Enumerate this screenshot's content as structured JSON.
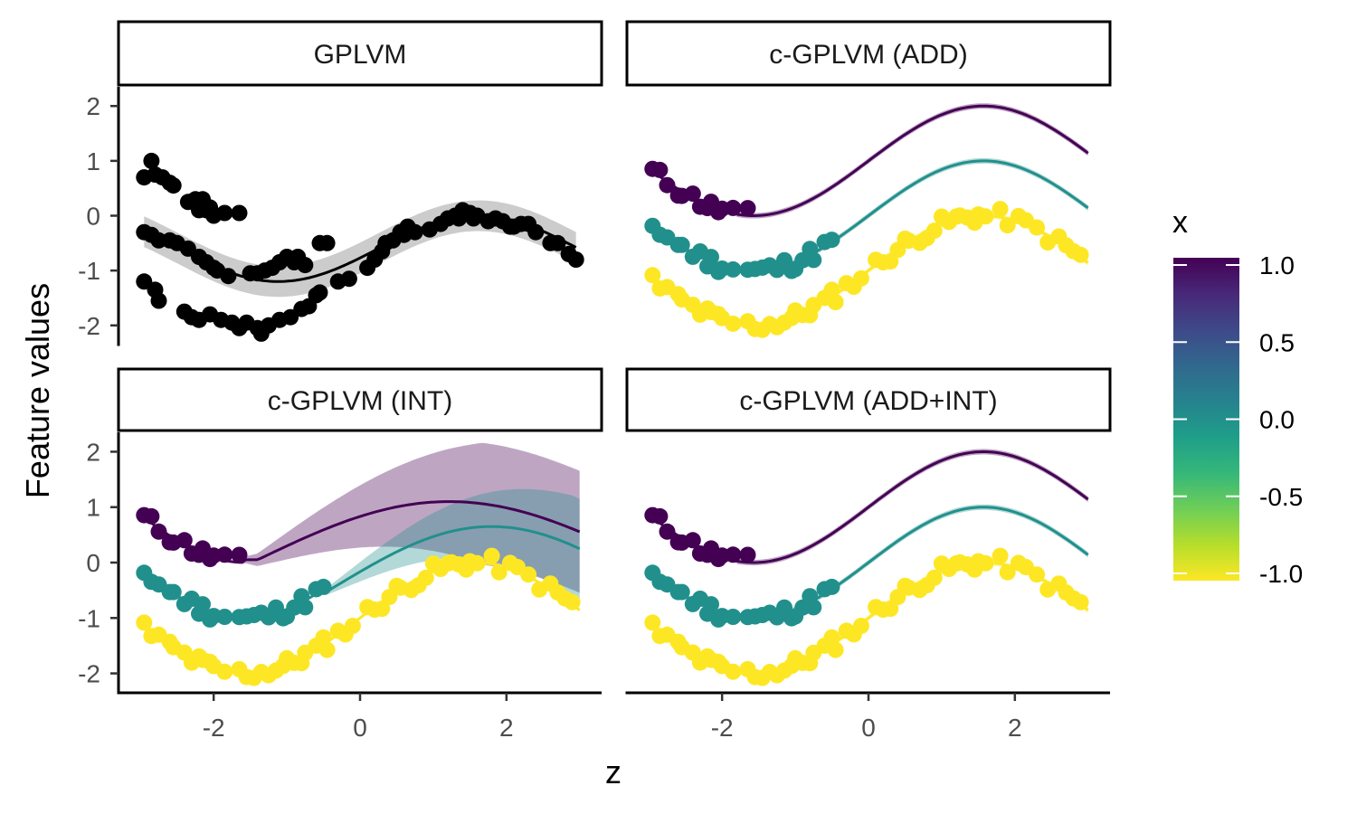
{
  "chart_data": {
    "type": "scatter",
    "xlabel": "z",
    "ylabel": "Feature values",
    "xlim": [
      -3.3,
      3.3
    ],
    "ylim": [
      -2.35,
      2.35
    ],
    "xticks": [
      -2,
      0,
      2
    ],
    "yticks": [
      2,
      1,
      0,
      -1,
      -2
    ],
    "grid": false,
    "legend": {
      "title": "x",
      "position": "right",
      "type": "colorbar",
      "ticks": [
        "1.0",
        "0.5",
        "0.0",
        "-0.5",
        "-1.0"
      ],
      "tick_values": [
        1.0,
        0.5,
        0.0,
        -0.5,
        -1.0
      ],
      "range": [
        -1.0,
        1.0
      ],
      "colors": [
        "#FDE725",
        "#B5DE2B",
        "#6ECE58",
        "#35B779",
        "#1F9E89",
        "#26828E",
        "#31688E",
        "#3E4989",
        "#482878",
        "#440154"
      ]
    },
    "series_colors": {
      "x=1": "#440154",
      "x=0": "#21908C",
      "x=-1": "#FDE725",
      "single": "#000000"
    },
    "z_points": [
      -2.95,
      -2.85,
      -2.75,
      -2.6,
      -2.55,
      -2.4,
      -2.3,
      -2.2,
      -2.15,
      -2.05,
      -2.0,
      -1.85,
      -1.65,
      -1.55,
      -1.45,
      -1.35,
      -1.25,
      -1.15,
      -1.05,
      -1.0,
      -0.9,
      -0.8,
      -0.75,
      -0.6,
      -0.5,
      -0.45,
      -0.3,
      -0.2,
      -0.1,
      0.1,
      0.2,
      0.3,
      0.4,
      0.5,
      0.55,
      0.7,
      0.8,
      0.9,
      1.0,
      1.1,
      1.2,
      1.25,
      1.35,
      1.45,
      1.5,
      1.6,
      1.8,
      1.9,
      2.05,
      2.15,
      2.3,
      2.45,
      2.6,
      2.7,
      2.8,
      2.9
    ],
    "panels": [
      {
        "title": "GPLVM",
        "model": "single_curve",
        "points": [
          {
            "z": -2.95,
            "y": 0.7
          },
          {
            "z": -2.85,
            "y": 1.0
          },
          {
            "z": -2.8,
            "y": 0.75
          },
          {
            "z": -2.7,
            "y": 0.7
          },
          {
            "z": -2.6,
            "y": 0.6
          },
          {
            "z": -2.55,
            "y": 0.55
          },
          {
            "z": -2.35,
            "y": 0.25
          },
          {
            "z": -2.25,
            "y": 0.3
          },
          {
            "z": -2.2,
            "y": 0.1
          },
          {
            "z": -2.15,
            "y": 0.3
          },
          {
            "z": -2.1,
            "y": 0.1
          },
          {
            "z": -2.05,
            "y": 0.15
          },
          {
            "z": -2.0,
            "y": 0.0
          },
          {
            "z": -1.85,
            "y": 0.05
          },
          {
            "z": -1.65,
            "y": 0.05
          },
          {
            "z": -2.95,
            "y": -0.3
          },
          {
            "z": -2.85,
            "y": -0.35
          },
          {
            "z": -2.75,
            "y": -0.45
          },
          {
            "z": -2.6,
            "y": -0.45
          },
          {
            "z": -2.5,
            "y": -0.5
          },
          {
            "z": -2.35,
            "y": -0.6
          },
          {
            "z": -2.2,
            "y": -0.75
          },
          {
            "z": -2.1,
            "y": -0.85
          },
          {
            "z": -2.0,
            "y": -0.95
          },
          {
            "z": -1.95,
            "y": -1.0
          },
          {
            "z": -1.8,
            "y": -1.1
          },
          {
            "z": -1.5,
            "y": -1.05
          },
          {
            "z": -1.4,
            "y": -1.05
          },
          {
            "z": -1.3,
            "y": -1.0
          },
          {
            "z": -1.2,
            "y": -0.95
          },
          {
            "z": -1.1,
            "y": -0.85
          },
          {
            "z": -1.0,
            "y": -0.75
          },
          {
            "z": -0.9,
            "y": -0.85
          },
          {
            "z": -0.85,
            "y": -0.75
          },
          {
            "z": -0.75,
            "y": -0.9
          },
          {
            "z": -0.55,
            "y": -0.5
          },
          {
            "z": -0.45,
            "y": -0.5
          },
          {
            "z": -2.95,
            "y": -1.2
          },
          {
            "z": -2.8,
            "y": -1.35
          },
          {
            "z": -2.75,
            "y": -1.55
          },
          {
            "z": -2.4,
            "y": -1.75
          },
          {
            "z": -2.3,
            "y": -1.85
          },
          {
            "z": -2.2,
            "y": -1.9
          },
          {
            "z": -2.05,
            "y": -1.8
          },
          {
            "z": -1.9,
            "y": -1.9
          },
          {
            "z": -1.75,
            "y": -1.95
          },
          {
            "z": -1.65,
            "y": -2.05
          },
          {
            "z": -1.55,
            "y": -1.95
          },
          {
            "z": -1.4,
            "y": -2.05
          },
          {
            "z": -1.35,
            "y": -2.15
          },
          {
            "z": -1.25,
            "y": -2.0
          },
          {
            "z": -1.1,
            "y": -1.9
          },
          {
            "z": -0.95,
            "y": -1.85
          },
          {
            "z": -0.8,
            "y": -1.7
          },
          {
            "z": -0.7,
            "y": -1.65
          },
          {
            "z": -0.6,
            "y": -1.45
          },
          {
            "z": -0.55,
            "y": -1.4
          },
          {
            "z": -0.3,
            "y": -1.2
          },
          {
            "z": -0.15,
            "y": -1.15
          },
          {
            "z": 0.1,
            "y": -0.95
          },
          {
            "z": 0.2,
            "y": -0.8
          },
          {
            "z": 0.3,
            "y": -0.65
          },
          {
            "z": 0.35,
            "y": -0.5
          },
          {
            "z": 0.45,
            "y": -0.45
          },
          {
            "z": 0.55,
            "y": -0.3
          },
          {
            "z": 0.6,
            "y": -0.35
          },
          {
            "z": 0.65,
            "y": -0.2
          },
          {
            "z": 0.75,
            "y": -0.3
          },
          {
            "z": 0.95,
            "y": -0.25
          },
          {
            "z": 1.1,
            "y": -0.15
          },
          {
            "z": 1.2,
            "y": -0.05
          },
          {
            "z": 1.3,
            "y": 0.0
          },
          {
            "z": 1.35,
            "y": -0.05
          },
          {
            "z": 1.4,
            "y": 0.1
          },
          {
            "z": 1.5,
            "y": 0.05
          },
          {
            "z": 1.55,
            "y": -0.05
          },
          {
            "z": 1.6,
            "y": 0.0
          },
          {
            "z": 1.75,
            "y": -0.1
          },
          {
            "z": 1.85,
            "y": -0.05
          },
          {
            "z": 1.95,
            "y": -0.1
          },
          {
            "z": 2.05,
            "y": -0.2
          },
          {
            "z": 2.1,
            "y": -0.2
          },
          {
            "z": 2.2,
            "y": -0.15
          },
          {
            "z": 2.3,
            "y": -0.15
          },
          {
            "z": 2.4,
            "y": -0.3
          },
          {
            "z": 2.6,
            "y": -0.5
          },
          {
            "z": 2.7,
            "y": -0.5
          },
          {
            "z": 2.85,
            "y": -0.7
          },
          {
            "z": 2.95,
            "y": -0.8
          }
        ]
      },
      {
        "title": "c-GPLVM (ADD)",
        "model": "add"
      },
      {
        "title": "c-GPLVM (INT)",
        "model": "int"
      },
      {
        "title": "c-GPLVM (ADD+INT)",
        "model": "addint"
      }
    ]
  }
}
